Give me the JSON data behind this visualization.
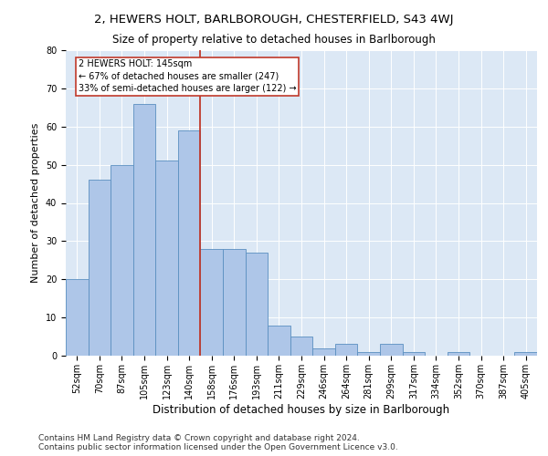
{
  "title1": "2, HEWERS HOLT, BARLBOROUGH, CHESTERFIELD, S43 4WJ",
  "title2": "Size of property relative to detached houses in Barlborough",
  "xlabel": "Distribution of detached houses by size in Barlborough",
  "ylabel": "Number of detached properties",
  "footer1": "Contains HM Land Registry data © Crown copyright and database right 2024.",
  "footer2": "Contains public sector information licensed under the Open Government Licence v3.0.",
  "annotation_line1": "2 HEWERS HOLT: 145sqm",
  "annotation_line2": "← 67% of detached houses are smaller (247)",
  "annotation_line3": "33% of semi-detached houses are larger (122) →",
  "bar_labels": [
    "52sqm",
    "70sqm",
    "87sqm",
    "105sqm",
    "123sqm",
    "140sqm",
    "158sqm",
    "176sqm",
    "193sqm",
    "211sqm",
    "229sqm",
    "246sqm",
    "264sqm",
    "281sqm",
    "299sqm",
    "317sqm",
    "334sqm",
    "352sqm",
    "370sqm",
    "387sqm",
    "405sqm"
  ],
  "bar_values": [
    20,
    46,
    50,
    66,
    51,
    59,
    28,
    28,
    27,
    8,
    5,
    2,
    3,
    1,
    3,
    1,
    0,
    1,
    0,
    0,
    1
  ],
  "bar_color": "#aec6e8",
  "bar_edge_color": "#5a8fc0",
  "vline_x": 5.5,
  "vline_color": "#c0392b",
  "annotation_box_color": "#c0392b",
  "background_color": "#dce8f5",
  "ylim": [
    0,
    80
  ],
  "yticks": [
    0,
    10,
    20,
    30,
    40,
    50,
    60,
    70,
    80
  ],
  "title1_fontsize": 9.5,
  "title2_fontsize": 8.5,
  "xlabel_fontsize": 8.5,
  "ylabel_fontsize": 8,
  "tick_fontsize": 7,
  "footer_fontsize": 6.5,
  "ann_fontsize": 7.0
}
